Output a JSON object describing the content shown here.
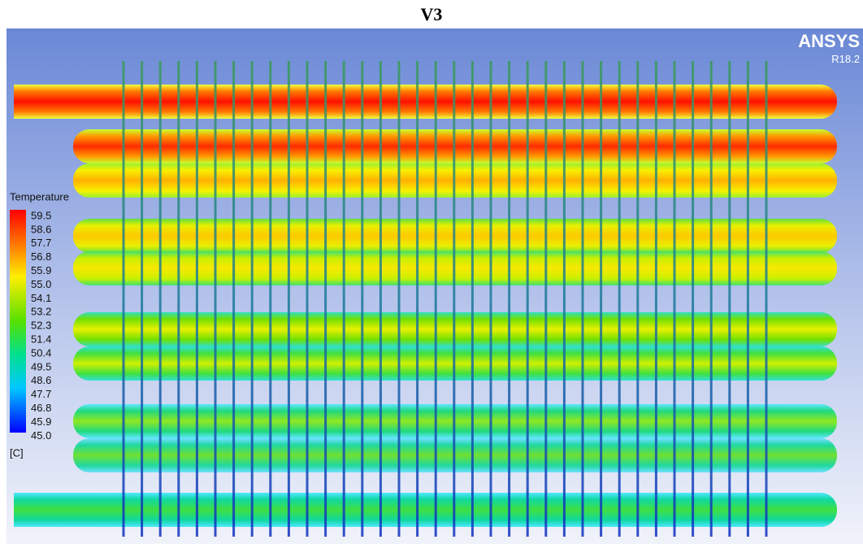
{
  "header": {
    "title": "V3"
  },
  "viewport": {
    "logo": "ANSYS",
    "version": "R18.2"
  },
  "legend": {
    "title": "Temperature",
    "labels": [
      "59.5",
      "58.6",
      "57.7",
      "56.8",
      "55.9",
      "55.0",
      "54.1",
      "53.2",
      "52.3",
      "51.4",
      "50.4",
      "49.5",
      "48.6",
      "47.7",
      "46.8",
      "45.9",
      "45.0"
    ],
    "unit": "[C]"
  }
}
